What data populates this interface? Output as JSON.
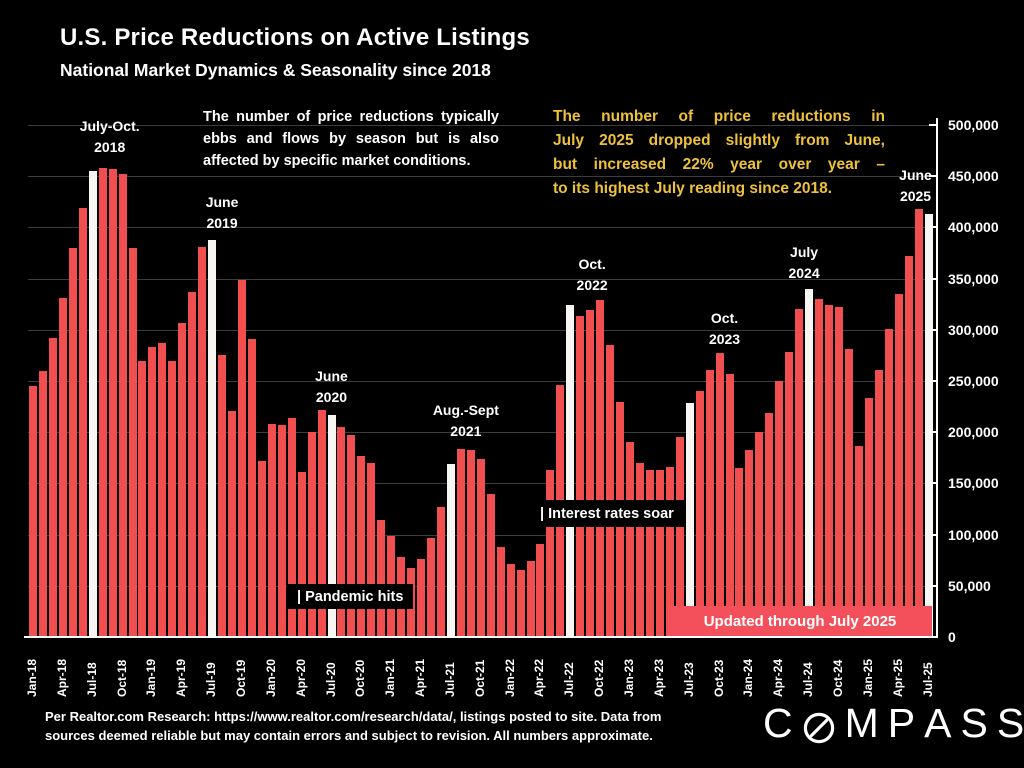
{
  "title": "U.S. Price Reductions on Active Listings",
  "subtitle": "National Market Dynamics & Seasonality since 2018",
  "notes": {
    "left": {
      "lines": [
        "The number of price reductions typically",
        "ebbs and flows by season but is also",
        "affected by specific market conditions."
      ]
    },
    "right": {
      "lines": [
        "The number of price reductions in",
        "July 2025 dropped slightly from June,",
        "but increased 22% year over year –",
        "to its highest July reading since 2018."
      ]
    }
  },
  "colors": {
    "bar_red": "#f14f4f",
    "bar_highlight": "#f7f6f2",
    "accent_yellow": "#eec13b",
    "banner_red": "#f4505c",
    "grid": "#3c3c3c",
    "axis": "#ffffff",
    "background": "#000000"
  },
  "chart_data": {
    "type": "bar",
    "title": "U.S. Price Reductions on Active Listings",
    "ylim": [
      0,
      500000
    ],
    "ytick_step": 50000,
    "ytick_labels": [
      "0",
      "50,000",
      "100,000",
      "150,000",
      "200,000",
      "250,000",
      "300,000",
      "350,000",
      "400,000",
      "450,000",
      "500,000"
    ],
    "xtick_every": 3,
    "grid": true,
    "x": [
      "Jan-18",
      "Feb-18",
      "Mar-18",
      "Apr-18",
      "May-18",
      "Jun-18",
      "Jul-18",
      "Aug-18",
      "Sep-18",
      "Oct-18",
      "Nov-18",
      "Dec-18",
      "Jan-19",
      "Feb-19",
      "Mar-19",
      "Apr-19",
      "May-19",
      "Jun-19",
      "Jul-19",
      "Aug-19",
      "Sep-19",
      "Oct-19",
      "Nov-19",
      "Dec-19",
      "Jan-20",
      "Feb-20",
      "Mar-20",
      "Apr-20",
      "May-20",
      "Jun-20",
      "Jul-20",
      "Aug-20",
      "Sep-20",
      "Oct-20",
      "Nov-20",
      "Dec-20",
      "Jan-21",
      "Feb-21",
      "Mar-21",
      "Apr-21",
      "May-21",
      "Jun-21",
      "Jul-21",
      "Aug-21",
      "Sep-21",
      "Oct-21",
      "Nov-21",
      "Dec-21",
      "Jan-22",
      "Feb-22",
      "Mar-22",
      "Apr-22",
      "May-22",
      "Jun-22",
      "Jul-22",
      "Aug-22",
      "Sep-22",
      "Oct-22",
      "Nov-22",
      "Dec-22",
      "Jan-23",
      "Feb-23",
      "Mar-23",
      "Apr-23",
      "May-23",
      "Jun-23",
      "Jul-23",
      "Aug-23",
      "Sep-23",
      "Oct-23",
      "Nov-23",
      "Dec-23",
      "Jan-24",
      "Feb-24",
      "Mar-24",
      "Apr-24",
      "May-24",
      "Jun-24",
      "Jul-24",
      "Aug-24",
      "Sep-24",
      "Oct-24",
      "Nov-24",
      "Dec-24",
      "Jan-25",
      "Feb-25",
      "Mar-25",
      "Apr-25",
      "May-25",
      "Jun-25",
      "Jul-25"
    ],
    "values": [
      245000,
      260000,
      292000,
      331000,
      380000,
      419000,
      455000,
      458000,
      457000,
      452000,
      380000,
      270000,
      283000,
      287000,
      270000,
      307000,
      337000,
      381000,
      388000,
      275000,
      221000,
      349000,
      291000,
      172000,
      208000,
      207000,
      214000,
      161000,
      200000,
      222000,
      217000,
      205000,
      197000,
      177000,
      170000,
      114000,
      99000,
      78000,
      67000,
      76000,
      97000,
      127000,
      169000,
      184000,
      183000,
      174000,
      140000,
      88000,
      71000,
      65000,
      74000,
      91000,
      163000,
      246000,
      324000,
      314000,
      319000,
      329000,
      285000,
      230000,
      190000,
      170000,
      163000,
      163000,
      166000,
      195000,
      229000,
      240000,
      261000,
      277000,
      257000,
      165000,
      183000,
      200000,
      219000,
      250000,
      278000,
      320000,
      340000,
      330000,
      324000,
      322000,
      281000,
      187000,
      233000,
      261000,
      301000,
      335000,
      372000,
      418000,
      413000
    ],
    "highlight_months": [
      "Jul-18",
      "Jul-19",
      "Jul-20",
      "Jul-21",
      "Jul-22",
      "Jul-23",
      "Jul-24",
      "Jul-25"
    ],
    "annotations": [
      {
        "lines": [
          "July-Oct.",
          "2018"
        ],
        "anchor_month": "Jul-18",
        "dx": 17,
        "top": 116
      },
      {
        "lines": [
          "June",
          "2019"
        ],
        "anchor_month": "Jul-19",
        "dx": 10,
        "top": 192
      },
      {
        "lines": [
          "June",
          "2020"
        ],
        "anchor_month": "Jul-20",
        "dx": 0,
        "top": 366
      },
      {
        "lines": [
          "Aug.-Sept",
          "2021"
        ],
        "anchor_month": "Jul-21",
        "dx": 15,
        "top": 400
      },
      {
        "lines": [
          "Oct.",
          "2022"
        ],
        "anchor_month": "Oct-22",
        "dx": -8,
        "top": 254
      },
      {
        "lines": [
          "Oct.",
          "2023"
        ],
        "anchor_month": "Oct-23",
        "dx": 5,
        "top": 308
      },
      {
        "lines": [
          "July",
          "2024"
        ],
        "anchor_month": "Jul-24",
        "dx": -5,
        "top": 242
      },
      {
        "lines": [
          "June",
          "2025"
        ],
        "anchor_month": "Jun-25",
        "dx": -3,
        "top": 165
      }
    ]
  },
  "event_labels": [
    {
      "text": "| Pandemic hits"
    },
    {
      "text": "| Interest rates soar"
    }
  ],
  "banner": "Updated through July 2025",
  "footer": {
    "line1": "Per Realtor.com Research:  https://www.realtor.com/research/data/, listings posted to site. Data from",
    "line2": "sources deemed reliable but may contain errors and subject to revision. All numbers approximate."
  },
  "logo_text": "COMPASS"
}
